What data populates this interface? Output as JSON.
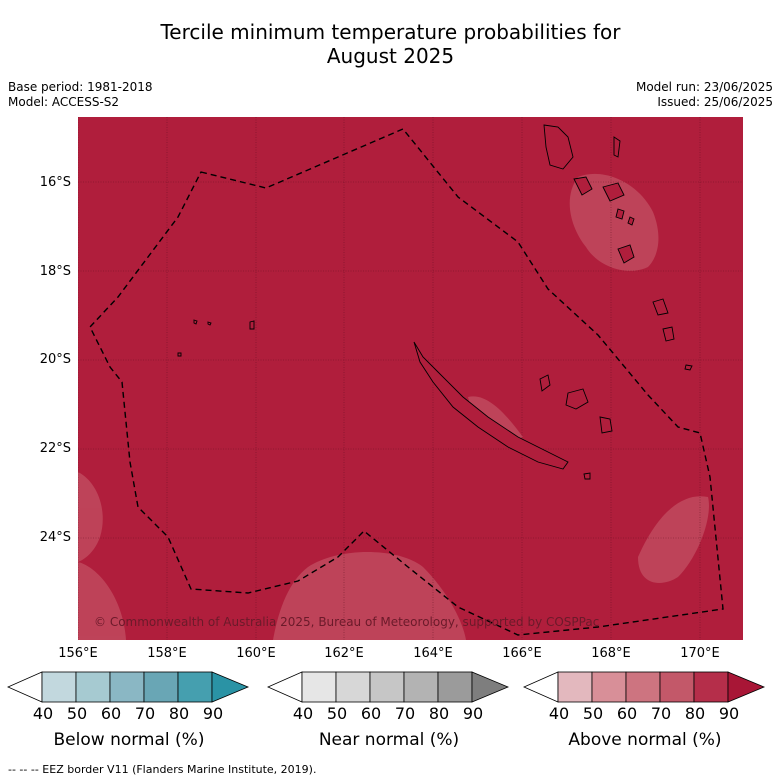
{
  "title_line1": "Tercile minimum temperature probabilities for",
  "title_line2": "August 2025",
  "meta": {
    "base_period": "Base period: 1981-2018",
    "model": "Model: ACCESS-S2",
    "model_run": "Model run: 23/06/2025",
    "issued": "Issued: 25/06/2025"
  },
  "map": {
    "background_color": "#b01e3c",
    "copyright": "© Commonwealth of Australia 2025, Bureau of Meteorology, supported by COSPPac",
    "lat_labels": [
      "16°S",
      "18°S",
      "20°S",
      "22°S",
      "24°S"
    ],
    "lon_labels": [
      "156°E",
      "158°E",
      "160°E",
      "162°E",
      "164°E",
      "166°E",
      "168°E",
      "170°E"
    ]
  },
  "colorbars": [
    {
      "title": "Below normal (%)",
      "ticks": [
        "40",
        "50",
        "60",
        "70",
        "80",
        "90"
      ],
      "colors": [
        "#ffffff",
        "#c2d8de",
        "#a6cad1",
        "#8ab7c4",
        "#69a6b5",
        "#459faf",
        "#2a93a5"
      ]
    },
    {
      "title": "Near normal (%)",
      "ticks": [
        "40",
        "50",
        "60",
        "70",
        "80",
        "90"
      ],
      "colors": [
        "#ffffff",
        "#e6e6e6",
        "#d7d7d7",
        "#c6c6c6",
        "#b3b3b3",
        "#9b9b9b",
        "#7e7e7e"
      ]
    },
    {
      "title": "Above normal (%)",
      "ticks": [
        "40",
        "50",
        "60",
        "70",
        "80",
        "90"
      ],
      "colors": [
        "#ffffff",
        "#e3b8be",
        "#d88f98",
        "#cd7480",
        "#c35869",
        "#b52e4a",
        "#a81636"
      ]
    }
  ],
  "legend_footer": "-- -- -- EEZ border V11 (Flanders Marine Institute, 2019)."
}
